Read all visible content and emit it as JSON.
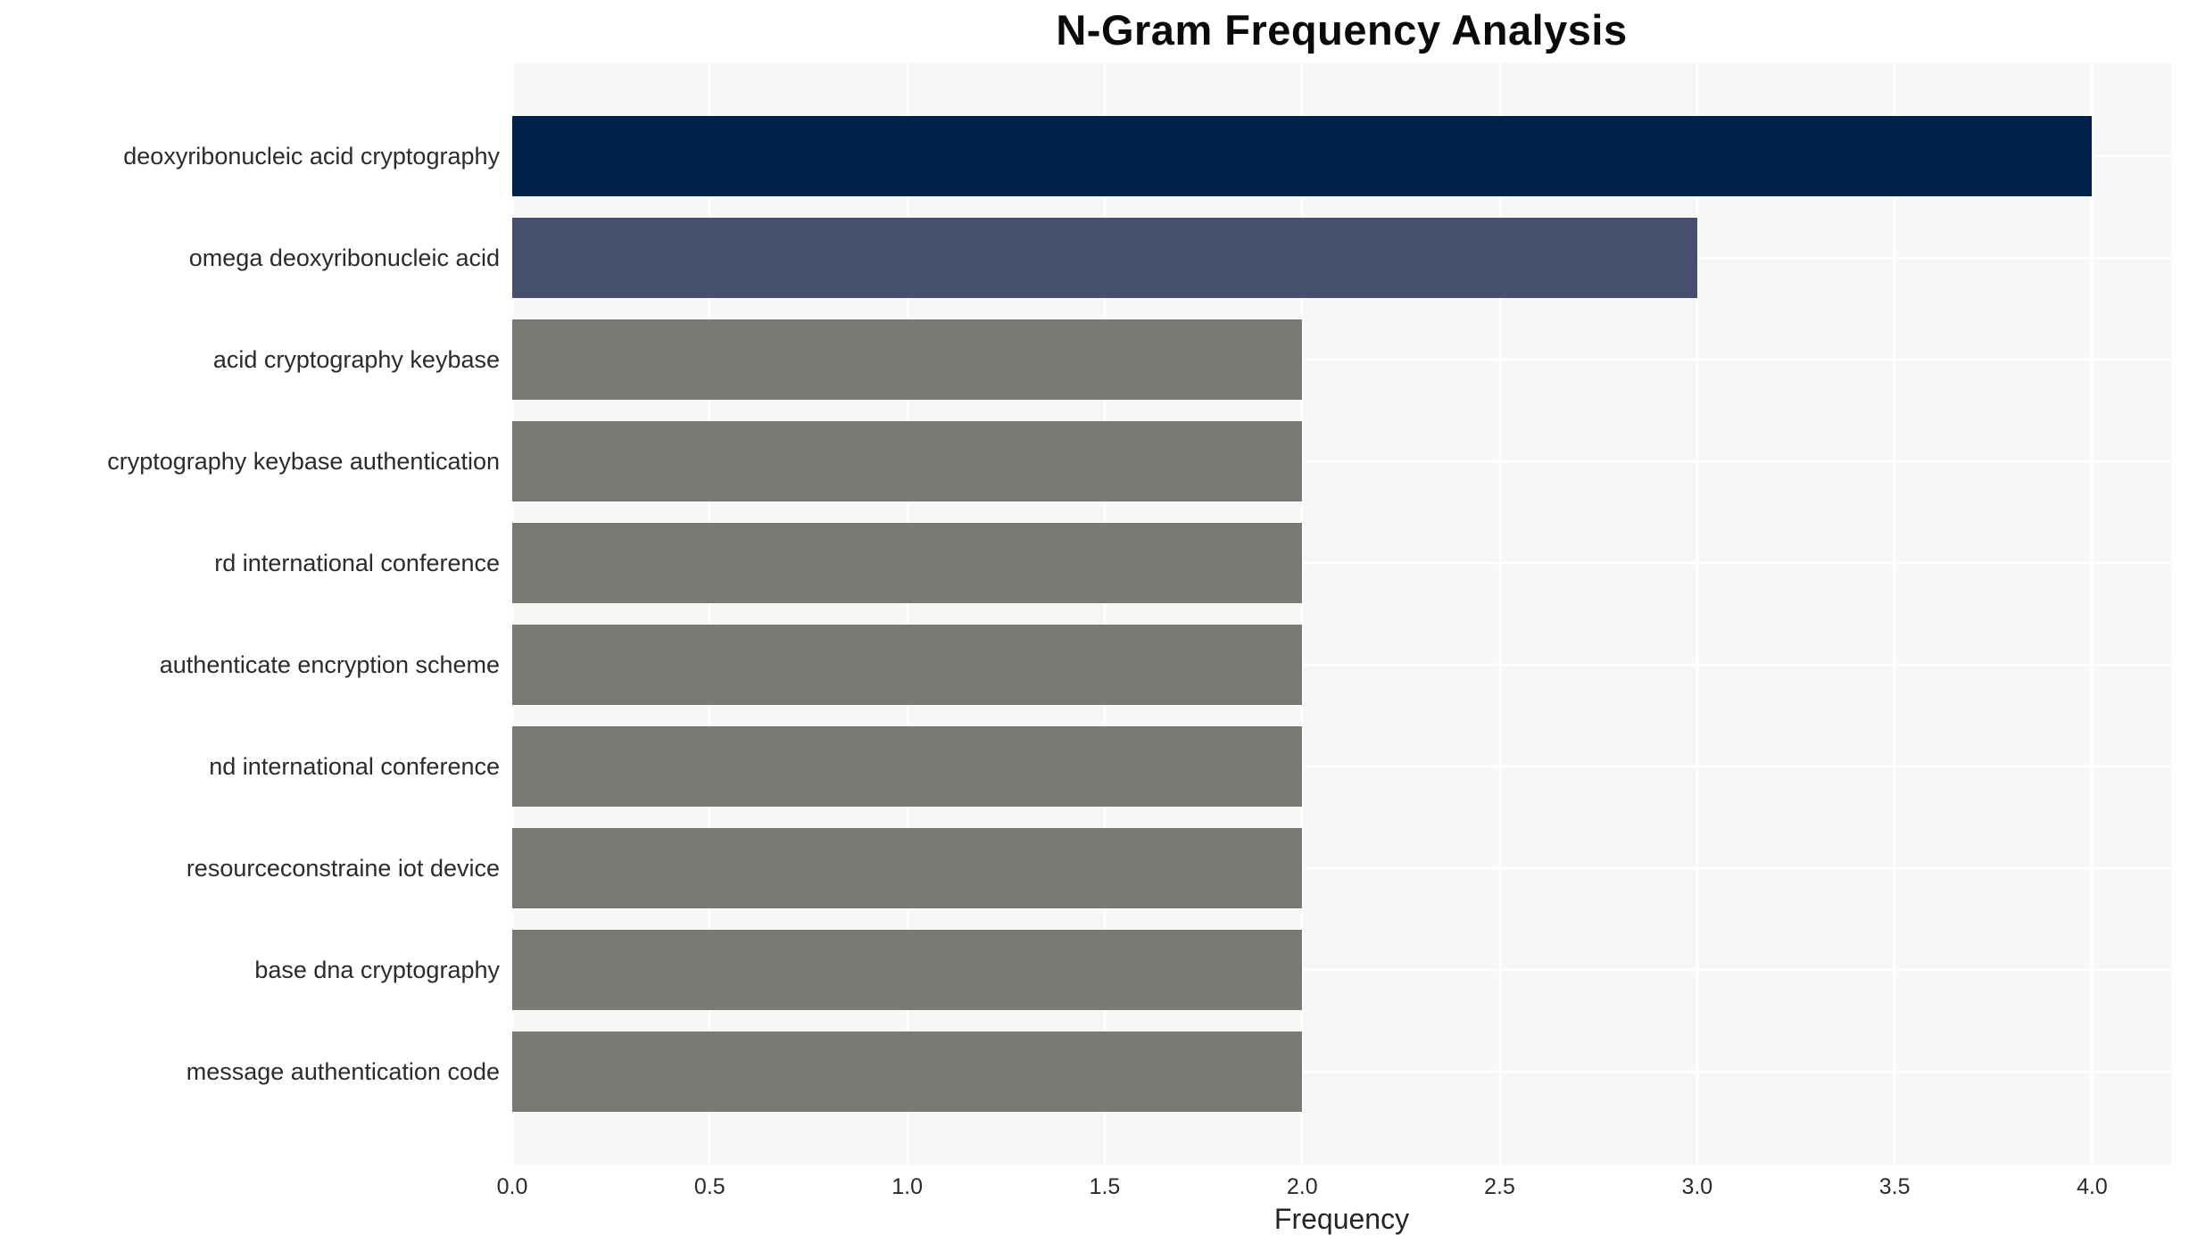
{
  "chart_data": {
    "type": "bar",
    "orientation": "horizontal",
    "title": "N-Gram Frequency Analysis",
    "xlabel": "Frequency",
    "ylabel": "",
    "categories": [
      "deoxyribonucleic acid cryptography",
      "omega deoxyribonucleic acid",
      "acid cryptography keybase",
      "cryptography keybase authentication",
      "rd international conference",
      "authenticate encryption scheme",
      "nd international conference",
      "resourceconstraine iot device",
      "base dna cryptography",
      "message authentication code"
    ],
    "values": [
      4,
      3,
      2,
      2,
      2,
      2,
      2,
      2,
      2,
      2
    ],
    "bar_colors": [
      "#00214a",
      "#46506e",
      "#7b7975",
      "#7b7975",
      "#7b7975",
      "#7b7975",
      "#7b7975",
      "#7b7975",
      "#7b7975",
      "#7b7975"
    ],
    "xlim": [
      0,
      4.2
    ],
    "xticks": [
      0.0,
      0.5,
      1.0,
      1.5,
      2.0,
      2.5,
      3.0,
      3.5,
      4.0
    ],
    "xtick_labels": [
      "0.0",
      "0.5",
      "1.0",
      "1.5",
      "2.0",
      "2.5",
      "3.0",
      "3.5",
      "4.0"
    ],
    "grid": "white vertical and horizontal gridlines on light panel",
    "legend": "none",
    "plot_background": "#f7f7f6",
    "gridline_color": "#ffffff",
    "text_color": "#2b2b2b",
    "title_color": "#0a0a0a"
  }
}
